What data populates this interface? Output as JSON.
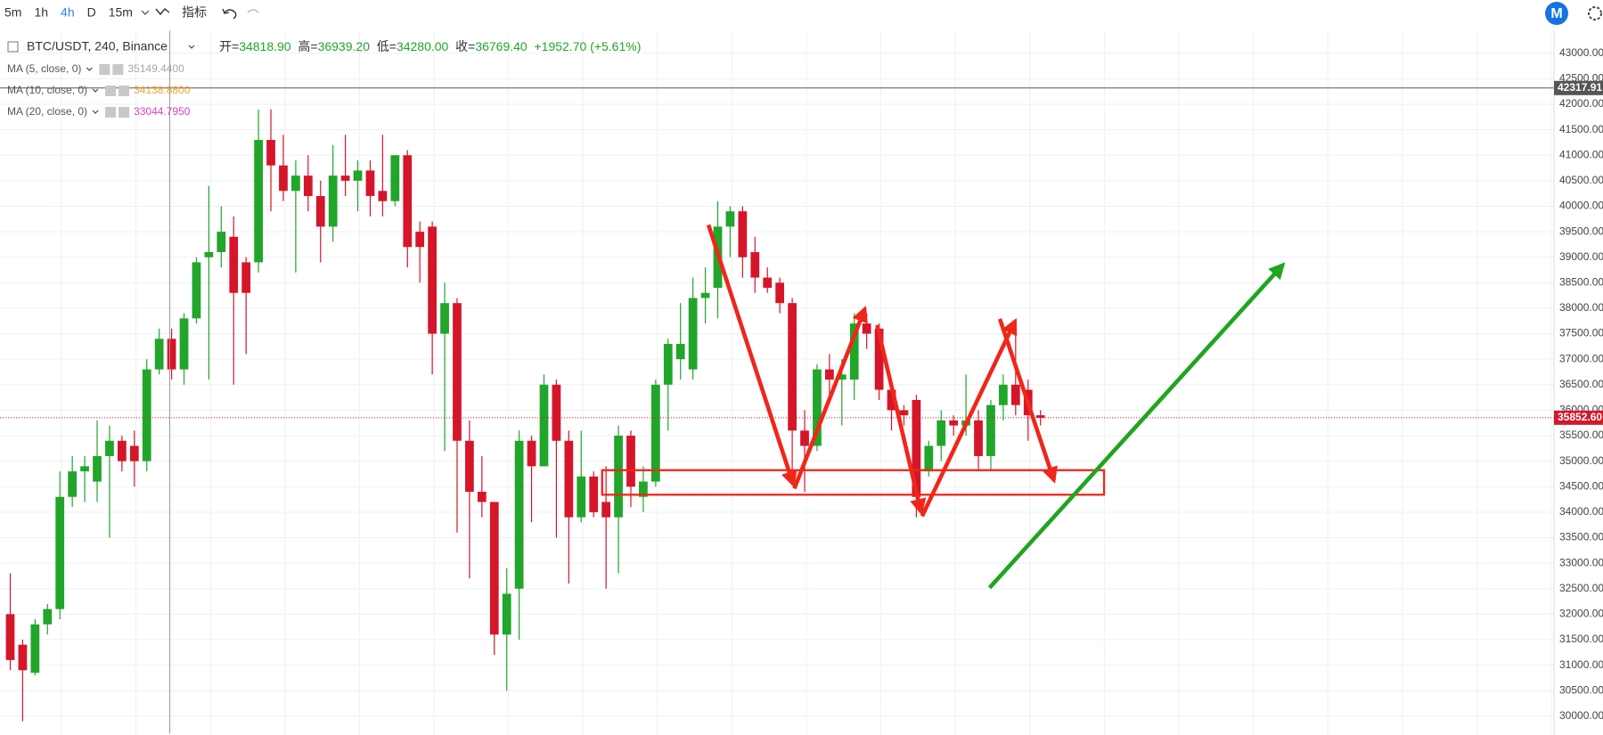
{
  "toolbar": {
    "intervals": [
      "5m",
      "1h",
      "4h",
      "D",
      "15m"
    ],
    "active_interval": 2,
    "indicators_button": "指标"
  },
  "chart_data": {
    "type": "candlestick",
    "symbol_label": "BTC/USDT, 240, Binance",
    "readout": [
      {
        "key": "开=",
        "value": "34818.90"
      },
      {
        "key": "高=",
        "value": "36939.20"
      },
      {
        "key": "低=",
        "value": "34280.00"
      },
      {
        "key": "收=",
        "value": "36769.40"
      },
      {
        "key": "",
        "value": "+1952.70 (+5.61%)"
      }
    ],
    "indicators": [
      {
        "name": "MA (5, close, 0)",
        "value_label": "35149.4400",
        "color": "#a8a8a8"
      },
      {
        "name": "MA (10, close, 0)",
        "value_label": "34138.8800",
        "color": "#f5a623"
      },
      {
        "name": "MA (20, close, 0)",
        "value_label": "33044.7950",
        "color": "#e040c0"
      }
    ],
    "up_color": "#21a52a",
    "down_color": "#d5162a",
    "open": [
      32000,
      31400,
      30850,
      31800,
      32100,
      34300,
      34800,
      34600,
      35100,
      35400,
      35300,
      35000,
      36800,
      37400,
      36800,
      37800,
      39000,
      39100,
      39400,
      38900,
      38900,
      41300,
      40800,
      40300,
      40600,
      40200,
      39600,
      40600,
      40500,
      40700,
      40300,
      40100,
      41000,
      39500,
      39600,
      37500,
      38100,
      35400,
      34400,
      34200,
      31600,
      32500,
      35400,
      34900,
      36500,
      35400,
      33900,
      34700,
      34200,
      33900,
      35500,
      34300,
      34600,
      36500,
      37000,
      36800,
      38200,
      38400,
      39600,
      39900,
      39100,
      38600,
      38500,
      38100,
      35600,
      35300,
      36800,
      36600,
      36600,
      37700,
      37600,
      36400,
      36000,
      36200,
      34800,
      35300,
      35800,
      35700,
      35800,
      35100,
      36100,
      36500,
      36400,
      35900
    ],
    "high": [
      32800,
      31500,
      31900,
      32200,
      34800,
      35100,
      35100,
      35800,
      35700,
      35500,
      35600,
      37000,
      37600,
      37600,
      37900,
      39000,
      40400,
      40000,
      39800,
      39000,
      41900,
      41900,
      41400,
      40900,
      41000,
      40500,
      41200,
      41400,
      40900,
      40900,
      41400,
      41000,
      41100,
      39700,
      39700,
      38500,
      38200,
      35800,
      35100,
      34200,
      32900,
      35600,
      35500,
      36700,
      36600,
      35600,
      35600,
      34800,
      34900,
      35700,
      35600,
      34900,
      36600,
      37400,
      38100,
      38600,
      38800,
      40100,
      40000,
      40000,
      39400,
      38800,
      38600,
      38200,
      36000,
      36900,
      37100,
      37000,
      37900,
      37900,
      37700,
      36500,
      36100,
      36300,
      35400,
      36000,
      35900,
      36700,
      36000,
      36200,
      36700,
      37500,
      36600,
      36000
    ],
    "low": [
      30900,
      29900,
      30800,
      31600,
      31900,
      34100,
      34200,
      34200,
      33500,
      34800,
      34500,
      34800,
      36700,
      36600,
      36500,
      37700,
      36600,
      38800,
      36500,
      37100,
      38700,
      39900,
      40100,
      38700,
      39900,
      38900,
      39300,
      40200,
      39900,
      39800,
      39800,
      40000,
      38800,
      38500,
      36700,
      35200,
      33600,
      32700,
      33900,
      31200,
      30500,
      31500,
      33800,
      34900,
      33500,
      32600,
      33800,
      33900,
      32500,
      32800,
      34100,
      34000,
      34500,
      35600,
      36600,
      36600,
      37700,
      37800,
      39000,
      38600,
      38300,
      38300,
      37900,
      34700,
      34400,
      35200,
      36300,
      35700,
      36200,
      37200,
      36200,
      35600,
      35700,
      33900,
      34700,
      35000,
      35500,
      35500,
      34800,
      34800,
      35800,
      35900,
      35400,
      35700
    ],
    "close": [
      31100,
      30900,
      31800,
      32100,
      34300,
      34800,
      34900,
      35100,
      35400,
      35000,
      35000,
      36800,
      37400,
      36800,
      37800,
      38900,
      39100,
      39500,
      38300,
      38300,
      41300,
      40800,
      40300,
      40600,
      40200,
      39600,
      40600,
      40500,
      40700,
      40200,
      40100,
      41000,
      39200,
      39200,
      37500,
      38100,
      35400,
      34400,
      34200,
      31600,
      32400,
      35400,
      34900,
      36500,
      35400,
      33900,
      34700,
      34000,
      33900,
      35500,
      34500,
      34600,
      36500,
      37300,
      37300,
      38200,
      38300,
      39600,
      39900,
      39000,
      38600,
      38400,
      38100,
      35600,
      35300,
      36800,
      36600,
      36700,
      37700,
      37500,
      36400,
      36000,
      35900,
      34300,
      35300,
      35800,
      35700,
      35800,
      35100,
      36100,
      36500,
      36100,
      35900,
      35850
    ],
    "price_lines": [
      {
        "value": 42317.91,
        "label": "42317.91",
        "color": "#555555",
        "dashed": false
      },
      {
        "value": 35852.6,
        "label": "35852.60",
        "color": "#d5162a",
        "dashed": true
      }
    ],
    "ylim": [
      29630,
      43450
    ],
    "yticks": [
      {
        "value": 30000,
        "label": "30000.00"
      },
      {
        "value": 30500,
        "label": "30500.00"
      },
      {
        "value": 31000,
        "label": "31000.00"
      },
      {
        "value": 31500,
        "label": "31500.00"
      },
      {
        "value": 32000,
        "label": "32000.00"
      },
      {
        "value": 32500,
        "label": "32500.00"
      },
      {
        "value": 33000,
        "label": "33000.00"
      },
      {
        "value": 33500,
        "label": "33500.00"
      },
      {
        "value": 34000,
        "label": "34000.00"
      },
      {
        "value": 34500,
        "label": "34500.00"
      },
      {
        "value": 35000,
        "label": "35000.00"
      },
      {
        "value": 35500,
        "label": "35500.00"
      },
      {
        "value": 36000,
        "label": "36000.00"
      },
      {
        "value": 36500,
        "label": "36500.00"
      },
      {
        "value": 37000,
        "label": "37000.00"
      },
      {
        "value": 37500,
        "label": "37500.00"
      },
      {
        "value": 38000,
        "label": "38000.00"
      },
      {
        "value": 38500,
        "label": "38500.00"
      },
      {
        "value": 39000,
        "label": "39000.00"
      },
      {
        "value": 39500,
        "label": "39500.00"
      },
      {
        "value": 40000,
        "label": "40000.00"
      },
      {
        "value": 40500,
        "label": "40500.00"
      },
      {
        "value": 41000,
        "label": "41000.00"
      },
      {
        "value": 41500,
        "label": "41500.00"
      },
      {
        "value": 42000,
        "label": "42000.00"
      },
      {
        "value": 42500,
        "label": "42500.00"
      },
      {
        "value": 43000,
        "label": "43000.00"
      }
    ],
    "grid": true
  }
}
